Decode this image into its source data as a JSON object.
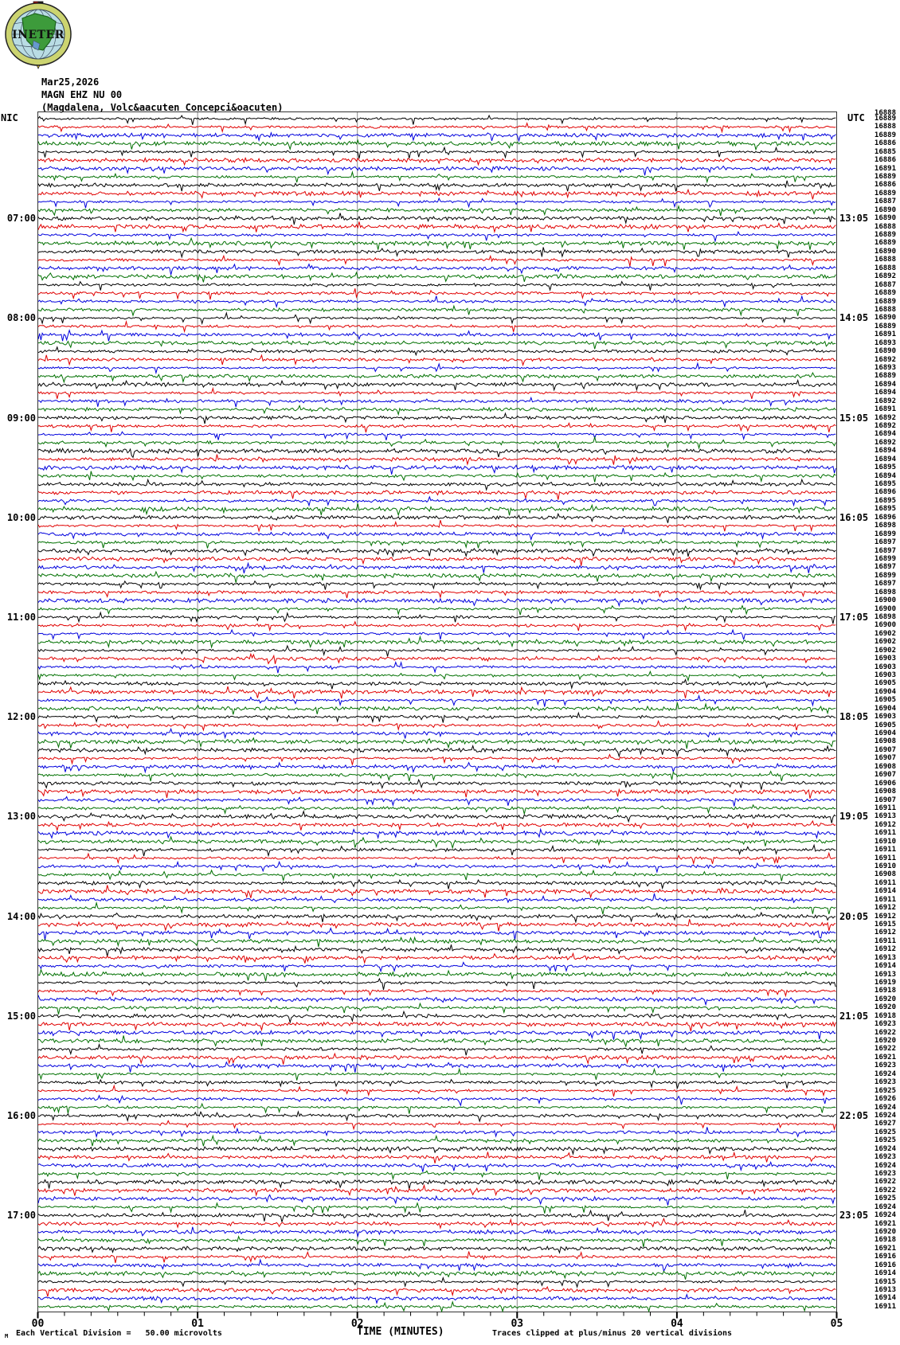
{
  "header": {
    "date": "Mar25,2026",
    "station": "MAGN EHZ NU 00",
    "location": "(Magdalena, Volc&aacuten Concepci&oacuten)"
  },
  "logo": {
    "text": "INETER"
  },
  "left_axis": {
    "label": "NIC",
    "hours": [
      "07:00",
      "08:00",
      "09:00",
      "10:00",
      "11:00",
      "12:00",
      "13:00",
      "14:00",
      "15:00",
      "16:00",
      "17:00"
    ]
  },
  "right_axis": {
    "label": "UTC",
    "hours": [
      "13:05",
      "14:05",
      "15:05",
      "16:05",
      "17:05",
      "18:05",
      "19:05",
      "20:05",
      "21:05",
      "22:05",
      "23:05"
    ],
    "artifact_value": "16888"
  },
  "x_axis": {
    "title": "TIME (MINUTES)",
    "ticks": [
      "00",
      "01",
      "02",
      "03",
      "04",
      "05"
    ]
  },
  "footer": {
    "tiny_mark": "M",
    "scale_note": "Each Vertical Division =   50.00 microvolts",
    "clip_note": "Traces clipped at plus/minus 20 vertical divisions"
  },
  "colors": {
    "trace_cycle": [
      "#000000",
      "#e00000",
      "#0000dd",
      "#007000"
    ],
    "gridline": "#8a8a8a",
    "frame": "#333333",
    "logo_ring": "#ccd470",
    "logo_sea": "#b9dce4",
    "logo_land": "#3d9b3b",
    "logo_lake": "#6699cc",
    "logo_flag_red": "#cc0000",
    "logo_flag_black": "#111111",
    "logo_pointer": "#e8c832"
  },
  "chart_data": {
    "type": "line",
    "subtype": "helicorder-seismogram",
    "title": "MAGN EHZ NU 00 (Magdalena, Volc&aacuten Concepci&oacuten) Mar25,2026",
    "xlabel": "TIME (MINUTES)",
    "x_ticks": [
      "00",
      "01",
      "02",
      "03",
      "04",
      "05"
    ],
    "x_minor_ticks_per_minute": 6,
    "minutes_per_trace": 5,
    "traces_per_hour": 12,
    "num_traces": 144,
    "grid": "vertical gray lines at each minute",
    "legend_position": "none",
    "trace_color_cycle": [
      "black",
      "red",
      "blue",
      "green"
    ],
    "local_time_start": "06:00",
    "local_hour_labels": [
      "07:00",
      "08:00",
      "09:00",
      "10:00",
      "11:00",
      "12:00",
      "13:00",
      "14:00",
      "15:00",
      "16:00",
      "17:00"
    ],
    "utc_hour_labels": [
      "13:05",
      "14:05",
      "15:05",
      "16:05",
      "17:05",
      "18:05",
      "19:05",
      "20:05",
      "21:05",
      "22:05",
      "23:05"
    ],
    "hour_label_rows": [
      13,
      25,
      37,
      49,
      61,
      73,
      85,
      97,
      109,
      121,
      133
    ],
    "scale_note": "Each Vertical Division = 50.00 microvolts",
    "clip_note": "Traces clipped at plus/minus 20 vertical divisions",
    "waveform_description": "continuous low-amplitude microseismic noise with frequent short mostly-downward spikes; no large events",
    "trace_right_values": [
      16889,
      16888,
      16889,
      16886,
      16885,
      16886,
      16891,
      16889,
      16886,
      16889,
      16887,
      16890,
      16890,
      16888,
      16889,
      16889,
      16890,
      16888,
      16888,
      16892,
      16887,
      16889,
      16889,
      16888,
      16890,
      16889,
      16891,
      16893,
      16890,
      16892,
      16893,
      16889,
      16894,
      16894,
      16892,
      16891,
      16892,
      16892,
      16894,
      16892,
      16894,
      16894,
      16895,
      16894,
      16895,
      16896,
      16895,
      16895,
      16896,
      16898,
      16899,
      16897,
      16897,
      16899,
      16897,
      16899,
      16897,
      16898,
      16900,
      16900,
      16898,
      16900,
      16902,
      16902,
      16902,
      16903,
      16903,
      16903,
      16905,
      16904,
      16905,
      16904,
      16903,
      16905,
      16904,
      16908,
      16907,
      16907,
      16908,
      16907,
      16906,
      16908,
      16907,
      16911,
      16913,
      16912,
      16911,
      16910,
      16911,
      16911,
      16910,
      16908,
      16911,
      16914,
      16911,
      16912,
      16912,
      16915,
      16912,
      16911,
      16912,
      16913,
      16914,
      16913,
      16919,
      16918,
      16920,
      16920,
      16918,
      16923,
      16922,
      16920,
      16922,
      16921,
      16923,
      16924,
      16923,
      16925,
      16926,
      16924,
      16924,
      16927,
      16925,
      16925,
      16924,
      16923,
      16924,
      16923,
      16922,
      16922,
      16925,
      16924,
      16924,
      16921,
      16920,
      16918,
      16921,
      16916,
      16916,
      16914,
      16915,
      16913,
      16914,
      16911
    ]
  }
}
